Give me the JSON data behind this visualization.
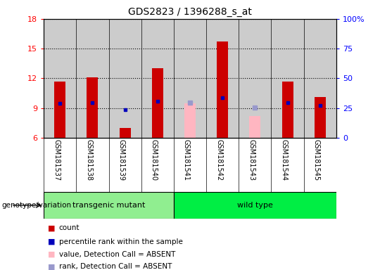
{
  "title": "GDS2823 / 1396288_s_at",
  "samples": [
    "GSM181537",
    "GSM181538",
    "GSM181539",
    "GSM181540",
    "GSM181541",
    "GSM181542",
    "GSM181543",
    "GSM181544",
    "GSM181545"
  ],
  "count_values": [
    11.7,
    12.1,
    7.0,
    13.0,
    null,
    15.7,
    null,
    11.7,
    10.1
  ],
  "rank_values": [
    9.45,
    9.55,
    8.85,
    9.65,
    null,
    10.05,
    null,
    9.55,
    9.25
  ],
  "absent_count": [
    null,
    null,
    null,
    null,
    9.5,
    null,
    8.2,
    null,
    null
  ],
  "absent_rank": [
    null,
    null,
    null,
    null,
    9.55,
    null,
    9.05,
    null,
    null
  ],
  "ylim_left": [
    6,
    18
  ],
  "ylim_right": [
    0,
    100
  ],
  "yticks_left": [
    6,
    9,
    12,
    15,
    18
  ],
  "yticks_right": [
    0,
    25,
    50,
    75,
    100
  ],
  "ytick_labels_right": [
    "0",
    "25",
    "50",
    "75",
    "100%"
  ],
  "groups": [
    {
      "label": "transgenic mutant",
      "start": 0,
      "end": 3,
      "color": "#90ee90"
    },
    {
      "label": "wild type",
      "start": 4,
      "end": 8,
      "color": "#00ee44"
    }
  ],
  "bar_color": "#cc0000",
  "absent_bar_color": "#ffb6c1",
  "rank_dot_color": "#0000bb",
  "absent_rank_color": "#9999cc",
  "bg_color": "#cccccc",
  "plot_bg": "#ffffff",
  "bar_width": 0.35,
  "genotype_label": "genotype/variation",
  "legend_items": [
    {
      "label": "count",
      "color": "#cc0000"
    },
    {
      "label": "percentile rank within the sample",
      "color": "#0000bb"
    },
    {
      "label": "value, Detection Call = ABSENT",
      "color": "#ffb6c1"
    },
    {
      "label": "rank, Detection Call = ABSENT",
      "color": "#9999cc"
    }
  ]
}
